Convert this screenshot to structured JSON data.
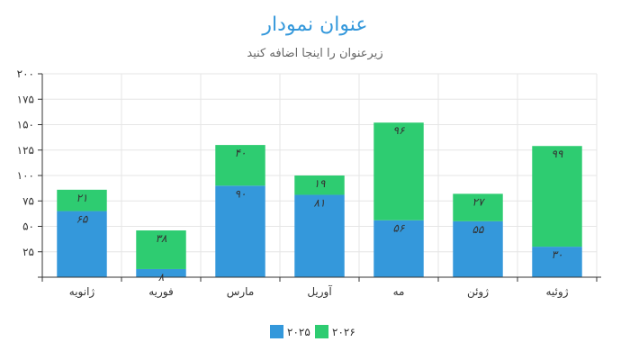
{
  "chart_data": {
    "type": "bar",
    "stacked": true,
    "title": "عنوان نمودار",
    "subtitle": "زیرعنوان را اینجا اضافه کنید",
    "categories": [
      "ژانویه",
      "فوریه",
      "مارس",
      "آوریل",
      "مه",
      "ژوئن",
      "ژوئیه"
    ],
    "series": [
      {
        "name": "۲۰۲۵",
        "values": [
          65,
          8,
          90,
          81,
          56,
          55,
          30
        ],
        "labels": [
          "۶۵",
          "۸",
          "۹۰",
          "۸۱",
          "۵۶",
          "۵۵",
          "۳۰"
        ],
        "color": "#3498db"
      },
      {
        "name": "۲۰۲۶",
        "values": [
          21,
          38,
          40,
          19,
          96,
          27,
          99
        ],
        "labels": [
          "۲۱",
          "۳۸",
          "۴۰",
          "۱۹",
          "۹۶",
          "۲۷",
          "۹۹"
        ],
        "color": "#2ecc71"
      }
    ],
    "yticks": [
      0,
      25,
      50,
      75,
      100,
      125,
      150,
      175,
      200
    ],
    "ytick_labels": [
      "",
      "۲۵",
      "۵۰",
      "۷۵",
      "۱۰۰",
      "۱۲۵",
      "۱۵۰",
      "۱۷۵",
      "۲۰۰"
    ],
    "ylim": [
      0,
      200
    ],
    "grid": true,
    "legend_position": "bottom",
    "title_color": "#3498db",
    "subtitle_color": "#666666",
    "grid_color": "#e6e6e6",
    "axis_color": "#333333"
  }
}
